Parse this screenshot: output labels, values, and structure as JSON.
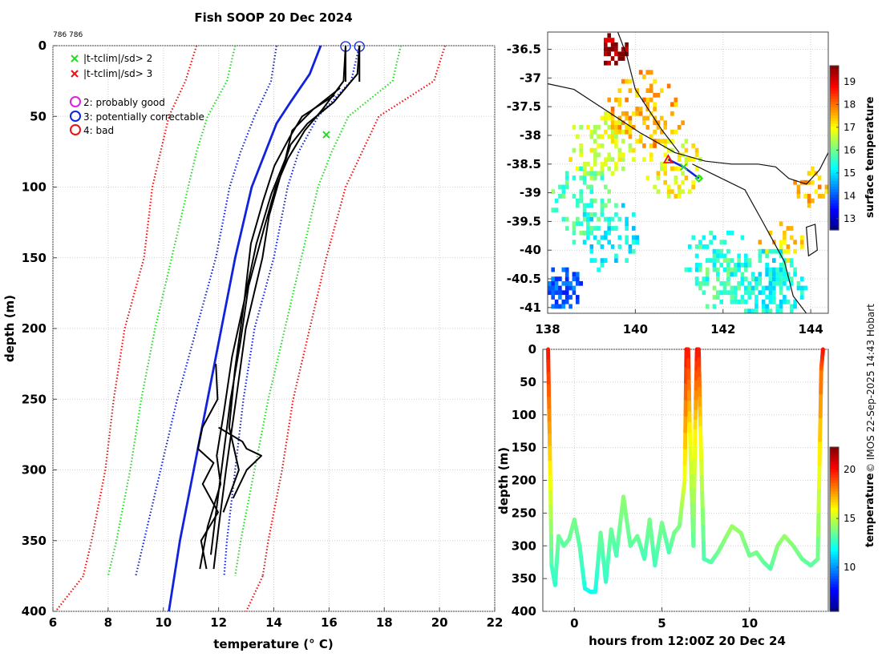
{
  "title": "Fish SOOP 20 Dec 2024",
  "id_label": "786 786",
  "watermark": "© IMOS 22-Sep-2025 14:43 Hobart",
  "legend": {
    "crosses": [
      "|t-tclim|/sd> 2",
      "|t-tclim|/sd> 3"
    ],
    "circles": [
      "2: probably good",
      "3: potentially correctable",
      "4: bad"
    ],
    "colors": {
      "green": "#22dd22",
      "red": "#ee1111",
      "magenta": "#dd22dd",
      "blue": "#1122dd"
    }
  },
  "chart_data": [
    {
      "type": "line",
      "name": "profile",
      "xlabel": "temperature (° C)",
      "ylabel": "depth (m)",
      "xlim": [
        6,
        22
      ],
      "ylim": [
        400,
        0
      ],
      "xticks": [
        6,
        8,
        10,
        12,
        14,
        16,
        18,
        20,
        22
      ],
      "yticks": [
        0,
        50,
        100,
        150,
        200,
        250,
        300,
        350,
        400
      ],
      "climatology": {
        "depths": [
          0,
          25,
          50,
          75,
          100,
          150,
          200,
          250,
          300,
          350,
          375
        ],
        "series": [
          {
            "name": "mean-3sd",
            "color": "#ee1111",
            "temps": [
              11.2,
              10.8,
              10.2,
              9.9,
              9.6,
              9.3,
              8.6,
              8.2,
              7.9,
              7.4,
              7.1
            ]
          },
          {
            "name": "mean-2sd",
            "color": "#22dd22",
            "temps": [
              12.6,
              12.3,
              11.6,
              11.2,
              10.9,
              10.3,
              9.7,
              9.2,
              8.8,
              8.3,
              8.0
            ]
          },
          {
            "name": "mean-1sd",
            "color": "#1122dd",
            "temps": [
              14.1,
              13.9,
              13.3,
              12.8,
              12.4,
              11.9,
              11.2,
              10.5,
              9.9,
              9.3,
              9.0
            ]
          },
          {
            "name": "mean+1sd",
            "color": "#1122dd",
            "temps": [
              17.1,
              16.8,
              15.6,
              14.9,
              14.5,
              14.0,
              13.3,
              12.9,
              12.6,
              12.3,
              12.2
            ]
          },
          {
            "name": "mean+2sd",
            "color": "#22dd22",
            "temps": [
              18.6,
              18.3,
              16.7,
              16.1,
              15.6,
              15.0,
              14.4,
              13.8,
              13.3,
              12.8,
              12.6
            ]
          },
          {
            "name": "mean+3sd",
            "color": "#ee1111",
            "temps": [
              20.2,
              19.8,
              17.8,
              17.2,
              16.6,
              15.9,
              15.3,
              14.7,
              14.3,
              13.8,
              13.6
            ]
          }
        ],
        "red_lower_extension": {
          "depths": [
            375,
            400
          ],
          "temps": [
            7.1,
            6.1
          ]
        },
        "red_upper_extension": {
          "depths": [
            375,
            400
          ],
          "temps": [
            13.6,
            13.0
          ]
        }
      },
      "reference_profile": {
        "color": "#1122dd",
        "depths": [
          0,
          20,
          40,
          55,
          80,
          100,
          150,
          200,
          250,
          300,
          350,
          400
        ],
        "temps": [
          15.7,
          15.3,
          14.6,
          14.1,
          13.6,
          13.2,
          12.6,
          12.1,
          11.6,
          11.1,
          10.6,
          10.2
        ]
      },
      "profiles": [
        {
          "depths": [
            0,
            20,
            40,
            55,
            70,
            90,
            120,
            150,
            200,
            250,
            300,
            340,
            370
          ],
          "temps": [
            17.1,
            17.0,
            16.2,
            15.2,
            14.6,
            14.3,
            13.8,
            13.6,
            13.0,
            12.6,
            12.3,
            12.0,
            11.8
          ]
        },
        {
          "depths": [
            0,
            25,
            45,
            60,
            80,
            100,
            130,
            170,
            210,
            250,
            290,
            330,
            360
          ],
          "temps": [
            16.6,
            16.5,
            15.8,
            15.1,
            14.5,
            14.1,
            13.6,
            13.1,
            12.8,
            12.4,
            12.2,
            11.9,
            11.7
          ]
        },
        {
          "depths": [
            35,
            50,
            65,
            85,
            110,
            140,
            180,
            230,
            270,
            300,
            330
          ],
          "temps": [
            16.2,
            15.0,
            14.6,
            14.0,
            13.6,
            13.2,
            12.9,
            12.6,
            12.4,
            12.7,
            12.2
          ]
        },
        {
          "depths": [
            30,
            45,
            60,
            80,
            105,
            140,
            180,
            220,
            260,
            290,
            310,
            340,
            370
          ],
          "temps": [
            16.4,
            15.4,
            14.7,
            14.4,
            13.9,
            13.4,
            12.9,
            12.5,
            12.2,
            11.9,
            12.1,
            11.6,
            11.3
          ]
        },
        {
          "depths": [
            225,
            250,
            270,
            285,
            295,
            310,
            330,
            350,
            370
          ],
          "temps": [
            11.9,
            11.9,
            11.5,
            11.2,
            11.8,
            11.5,
            11.9,
            11.4,
            11.6
          ]
        },
        {
          "depths": [
            270,
            280,
            285,
            290,
            300,
            320
          ],
          "temps": [
            12.0,
            12.8,
            13.1,
            13.5,
            13.0,
            12.6
          ]
        }
      ],
      "flag_circles": [
        {
          "temp": 16.6,
          "depth": 0,
          "flag": 3
        },
        {
          "temp": 17.1,
          "depth": 0,
          "flag": 3
        }
      ],
      "flag_crosses": [
        {
          "temp": 15.9,
          "depth": 63,
          "level": 2
        }
      ]
    },
    {
      "type": "heatmap",
      "name": "map",
      "colorbar_label": "surface temperature",
      "xlim": [
        138,
        144.4
      ],
      "ylim": [
        -41.1,
        -36.2
      ],
      "xticks": [
        138,
        140,
        142,
        144
      ],
      "yticks": [
        -36.5,
        -37,
        -37.5,
        -38,
        -38.5,
        -39,
        -39.5,
        -40,
        -40.5,
        -41
      ],
      "cbar_range": [
        12.5,
        19.7
      ],
      "cbar_ticks": [
        13,
        14,
        15,
        16,
        17,
        18,
        19
      ],
      "track": {
        "lon": [
          140.75,
          141.1,
          141.45
        ],
        "lat": [
          -38.42,
          -38.55,
          -38.75
        ]
      },
      "markers": [
        {
          "lon": 140.75,
          "lat": -38.42,
          "symbol": "triangle",
          "color": "#ee1111"
        },
        {
          "lon": 141.1,
          "lat": -38.55,
          "symbol": "cross",
          "color": "#22dd22"
        },
        {
          "lon": 141.45,
          "lat": -38.75,
          "symbol": "diamond",
          "color": "#22dd22"
        }
      ],
      "coastline": {
        "lon": [
          138,
          138.6,
          139.4,
          140.1,
          140.9,
          141.6,
          142.2,
          142.8,
          143.2,
          143.5,
          143.9,
          144.2,
          144.4
        ],
        "lat": [
          -37.1,
          -37.2,
          -37.6,
          -37.95,
          -38.3,
          -38.45,
          -38.5,
          -38.5,
          -38.55,
          -38.75,
          -38.85,
          -38.6,
          -38.3
        ]
      }
    },
    {
      "type": "scatter",
      "name": "depth-time",
      "xlabel": "hours from 12:00Z 20 Dec 24",
      "ylabel": "depth (m)",
      "colorbar_label": "temperature",
      "xlim": [
        -1.8,
        14.5
      ],
      "ylim": [
        400,
        0
      ],
      "xticks": [
        0,
        5,
        10
      ],
      "yticks": [
        0,
        50,
        100,
        150,
        200,
        250,
        300,
        350,
        400
      ],
      "cbar_range": [
        5.5,
        22.3
      ],
      "cbar_ticks": [
        10,
        15,
        20
      ],
      "track": {
        "hours": [
          -1.5,
          -1.4,
          -1.3,
          -1.1,
          -0.9,
          -0.6,
          -0.3,
          0.0,
          0.3,
          0.6,
          0.9,
          1.2,
          1.5,
          1.8,
          2.1,
          2.4,
          2.8,
          3.2,
          3.6,
          4.0,
          4.3,
          4.6,
          5.0,
          5.4,
          5.7,
          6.0,
          6.3,
          6.4,
          6.5,
          6.6,
          6.8,
          6.9,
          7.0,
          7.1,
          7.2,
          7.4,
          7.8,
          8.2,
          8.6,
          9.0,
          9.5,
          10.0,
          10.4,
          10.8,
          11.2,
          11.6,
          12.0,
          12.5,
          13.0,
          13.5,
          13.9,
          14.1,
          14.2
        ],
        "depths": [
          0,
          150,
          330,
          360,
          285,
          300,
          290,
          260,
          300,
          365,
          370,
          370,
          280,
          355,
          275,
          315,
          225,
          300,
          285,
          320,
          260,
          330,
          265,
          310,
          280,
          270,
          200,
          0,
          0,
          130,
          300,
          120,
          0,
          0,
          120,
          320,
          325,
          310,
          290,
          270,
          280,
          315,
          310,
          325,
          335,
          300,
          285,
          300,
          320,
          330,
          320,
          30,
          0
        ],
        "temps": [
          20.0,
          17.0,
          13.0,
          12.6,
          13.6,
          13.3,
          13.5,
          13.8,
          13.2,
          12.3,
          12.0,
          12.1,
          13.6,
          12.6,
          13.6,
          13.0,
          14.2,
          13.3,
          13.6,
          12.9,
          13.8,
          12.9,
          13.8,
          13.0,
          13.7,
          13.8,
          15.5,
          20.0,
          20.0,
          16.0,
          13.3,
          16.3,
          20.0,
          20.0,
          16.3,
          13.0,
          13.2,
          13.6,
          14.0,
          14.4,
          14.2,
          13.6,
          13.8,
          13.5,
          13.2,
          14.0,
          14.3,
          14.0,
          13.6,
          13.3,
          13.4,
          18.5,
          20.0
        ]
      }
    }
  ]
}
